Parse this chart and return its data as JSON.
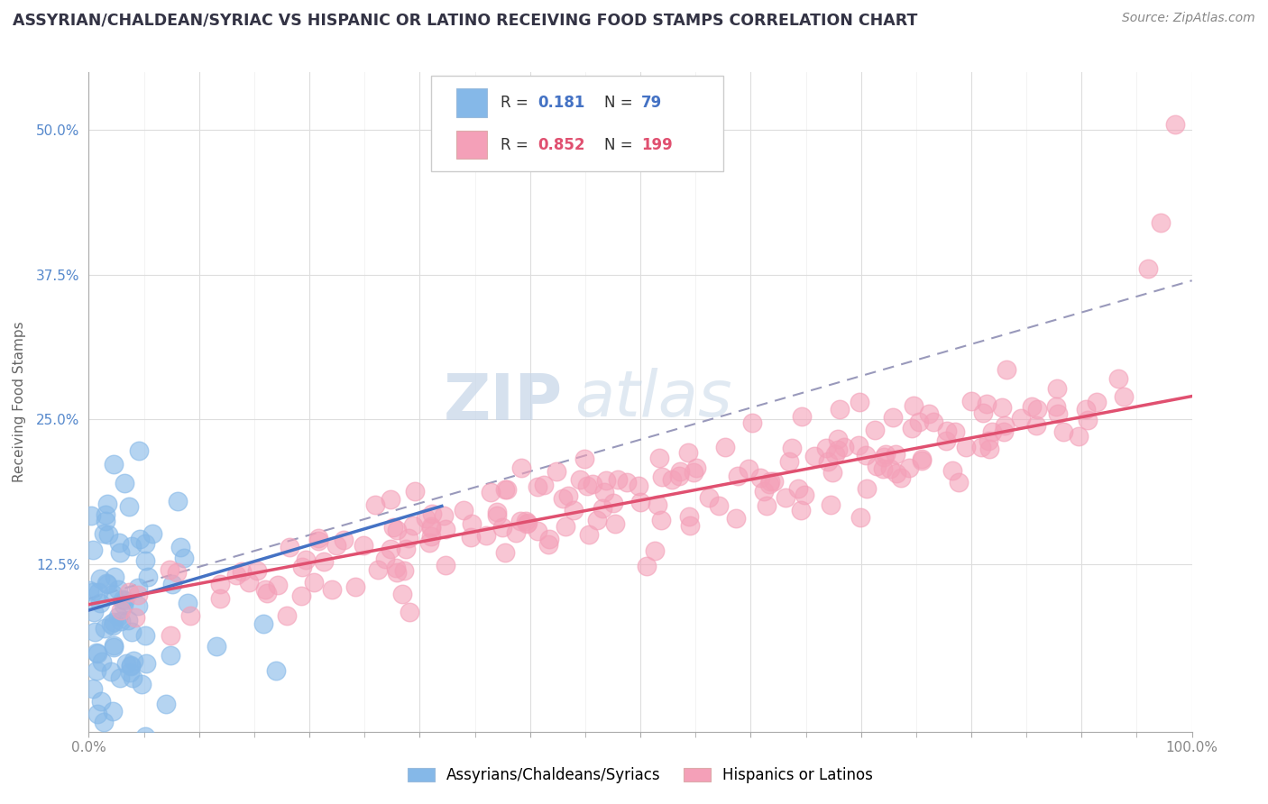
{
  "title": "ASSYRIAN/CHALDEAN/SYRIAC VS HISPANIC OR LATINO RECEIVING FOOD STAMPS CORRELATION CHART",
  "source": "Source: ZipAtlas.com",
  "ylabel": "Receiving Food Stamps",
  "xlim": [
    0,
    1.0
  ],
  "ylim": [
    -0.02,
    0.55
  ],
  "ytick_values": [
    0.125,
    0.25,
    0.375,
    0.5
  ],
  "ytick_labels": [
    "12.5%",
    "25.0%",
    "37.5%",
    "50.0%"
  ],
  "color_blue": "#85b8e8",
  "color_pink": "#f4a0b8",
  "color_blue_line": "#4472c4",
  "color_pink_line": "#e05070",
  "color_dashed": "#9999bb",
  "watermark_zip": "ZIP",
  "watermark_atlas": "atlas",
  "title_color": "#333344",
  "source_color": "#888888",
  "axis_color": "#aaaaaa",
  "background": "#ffffff",
  "tick_color_y": "#5588cc",
  "tick_color_x": "#888888"
}
